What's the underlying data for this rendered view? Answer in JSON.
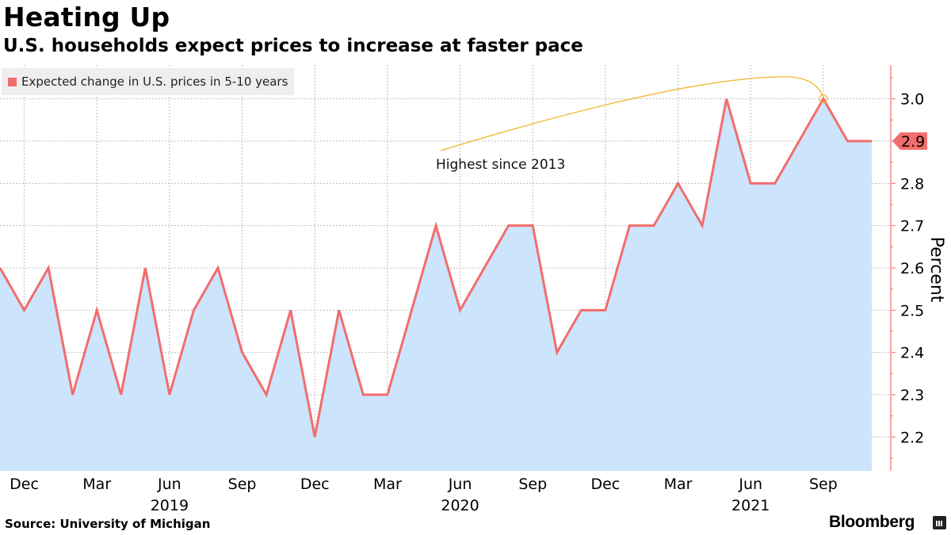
{
  "header": {
    "title": "Heating Up",
    "subtitle": "U.S. households expect prices to increase at faster pace"
  },
  "footer": {
    "source": "Source: University of Michigan",
    "brand": "Bloomberg"
  },
  "colors": {
    "line": "#f26d6d",
    "area": "#cce4fc",
    "annotation": "#f0b429",
    "grid": "#bdbdbd",
    "legend_bg": "#eeeeee"
  },
  "chart_data": {
    "type": "area",
    "ylabel": "Percent",
    "ylim": [
      2.12,
      3.08
    ],
    "yticks": [
      2.2,
      2.3,
      2.4,
      2.5,
      2.6,
      2.7,
      2.8,
      2.9,
      3.0
    ],
    "ytick_labels": [
      "2.2",
      "2.3",
      "2.4",
      "2.5",
      "2.6",
      "2.7",
      "2.8",
      "2.9",
      "3.0"
    ],
    "x_start": "2018-11",
    "x_end": "2021-11",
    "x_ticks": [
      {
        "date": "2018-12",
        "label": "Dec",
        "year": ""
      },
      {
        "date": "2019-03",
        "label": "Mar",
        "year": ""
      },
      {
        "date": "2019-06",
        "label": "Jun",
        "year": "2019"
      },
      {
        "date": "2019-09",
        "label": "Sep",
        "year": ""
      },
      {
        "date": "2019-12",
        "label": "Dec",
        "year": ""
      },
      {
        "date": "2020-03",
        "label": "Mar",
        "year": ""
      },
      {
        "date": "2020-06",
        "label": "Jun",
        "year": "2020"
      },
      {
        "date": "2020-09",
        "label": "Sep",
        "year": ""
      },
      {
        "date": "2020-12",
        "label": "Dec",
        "year": ""
      },
      {
        "date": "2021-03",
        "label": "Mar",
        "year": ""
      },
      {
        "date": "2021-06",
        "label": "Jun",
        "year": "2021"
      },
      {
        "date": "2021-09",
        "label": "Sep",
        "year": ""
      }
    ],
    "series": [
      {
        "name": "Expected change in U.S. prices in 5-10 years",
        "x": [
          "2018-11",
          "2018-12",
          "2019-01",
          "2019-02",
          "2019-03",
          "2019-04",
          "2019-05",
          "2019-06",
          "2019-07",
          "2019-08",
          "2019-09",
          "2019-10",
          "2019-11",
          "2019-12",
          "2020-01",
          "2020-02",
          "2020-03",
          "2020-04",
          "2020-05",
          "2020-06",
          "2020-07",
          "2020-08",
          "2020-09",
          "2020-10",
          "2020-11",
          "2020-12",
          "2021-01",
          "2021-02",
          "2021-03",
          "2021-04",
          "2021-05",
          "2021-06",
          "2021-07",
          "2021-08",
          "2021-09",
          "2021-10",
          "2021-11"
        ],
        "y": [
          2.6,
          2.5,
          2.6,
          2.3,
          2.5,
          2.3,
          2.6,
          2.3,
          2.5,
          2.6,
          2.4,
          2.3,
          2.5,
          2.2,
          2.5,
          2.3,
          2.3,
          2.5,
          2.7,
          2.5,
          2.6,
          2.7,
          2.7,
          2.4,
          2.5,
          2.5,
          2.7,
          2.7,
          2.8,
          2.7,
          3.0,
          2.8,
          2.8,
          2.9,
          3.0,
          2.9,
          2.9
        ]
      }
    ],
    "last_value_label": "2.9",
    "annotation": {
      "text": "Highest since 2013",
      "date": "2021-09",
      "value": 3.0
    },
    "legend_position": "top-left",
    "grid": true
  }
}
